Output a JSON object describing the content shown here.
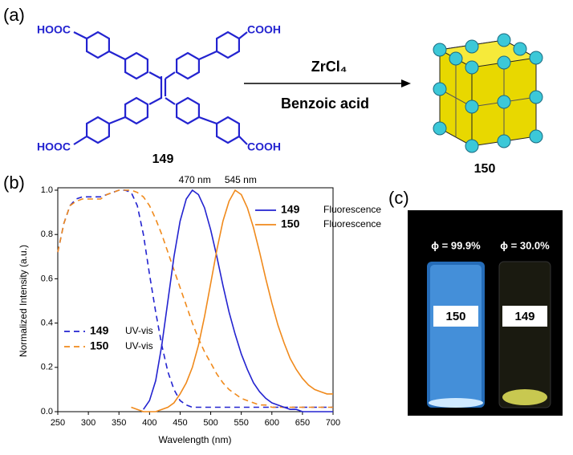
{
  "panels": {
    "a": "(a)",
    "b": "(b)",
    "c": "(c)"
  },
  "scheme": {
    "acid_left_top": "HOOC",
    "acid_right_top": "COOH",
    "acid_left_bottom": "HOOC",
    "acid_right_bottom": "COOH",
    "ligand": "149",
    "reagent": "ZrCl₄",
    "additive": "Benzoic acid",
    "product": "150"
  },
  "chart_data": {
    "type": "line",
    "x_label": "Wavelength (nm)",
    "y_label": "Normalized Intensity (a.u.)",
    "xlim": [
      250,
      700
    ],
    "ylim": [
      0,
      1.0
    ],
    "xticks": [
      250,
      300,
      350,
      400,
      450,
      500,
      550,
      600,
      650,
      700
    ],
    "yticks": [
      {
        "value": 0,
        "label": "0.0"
      },
      0.2,
      0.4,
      0.6,
      0.8,
      {
        "value": 1,
        "label": "1.0"
      }
    ],
    "x": [
      250,
      260,
      270,
      280,
      290,
      300,
      310,
      320,
      330,
      340,
      350,
      360,
      370,
      380,
      390,
      400,
      410,
      420,
      430,
      440,
      450,
      460,
      470,
      480,
      490,
      500,
      510,
      520,
      530,
      540,
      550,
      560,
      570,
      580,
      590,
      600,
      610,
      620,
      630,
      640,
      650,
      660,
      670,
      680,
      690,
      700
    ],
    "series": [
      {
        "name": "149",
        "label": "UV-vis",
        "style": "dashed",
        "color": "#2323d0",
        "values": [
          0.72,
          0.85,
          0.93,
          0.96,
          0.97,
          0.97,
          0.97,
          0.97,
          0.98,
          0.99,
          1.0,
          1.0,
          0.99,
          0.93,
          0.8,
          0.62,
          0.45,
          0.3,
          0.18,
          0.1,
          0.05,
          0.03,
          0.02,
          0.02,
          0.02,
          0.02,
          0.02,
          0.02,
          0.02,
          0.02,
          0.02,
          0.02,
          0.02,
          0.02,
          0.02,
          0.02,
          0.02,
          0.02,
          0.02,
          0.02,
          0.02,
          0.02,
          0.02,
          0.02,
          0.02,
          0.02
        ]
      },
      {
        "name": "150",
        "label": "UV-vis",
        "style": "dashed",
        "color": "#f08a1c",
        "values": [
          0.72,
          0.85,
          0.93,
          0.95,
          0.96,
          0.96,
          0.96,
          0.96,
          0.98,
          0.99,
          1.0,
          1.0,
          1.0,
          0.99,
          0.97,
          0.93,
          0.87,
          0.8,
          0.72,
          0.64,
          0.56,
          0.48,
          0.4,
          0.33,
          0.27,
          0.22,
          0.17,
          0.13,
          0.1,
          0.08,
          0.06,
          0.05,
          0.04,
          0.03,
          0.03,
          0.02,
          0.02,
          0.02,
          0.02,
          0.02,
          0.02,
          0.02,
          0.02,
          0.02,
          0.02,
          0.02
        ]
      },
      {
        "name": "149",
        "label": "Fluorescence",
        "style": "solid",
        "color": "#2323d0",
        "values": [
          null,
          null,
          null,
          null,
          null,
          null,
          null,
          null,
          null,
          null,
          null,
          null,
          null,
          null,
          0.01,
          0.05,
          0.14,
          0.3,
          0.5,
          0.7,
          0.86,
          0.96,
          1.0,
          0.98,
          0.92,
          0.82,
          0.7,
          0.57,
          0.45,
          0.35,
          0.26,
          0.19,
          0.13,
          0.09,
          0.06,
          0.04,
          0.03,
          0.02,
          0.01,
          0.01,
          0,
          0,
          0,
          0,
          0,
          0
        ]
      },
      {
        "name": "150",
        "label": "Fluorescence",
        "style": "solid",
        "color": "#f08a1c",
        "values": [
          null,
          null,
          null,
          null,
          null,
          null,
          null,
          null,
          null,
          null,
          null,
          null,
          0.02,
          0.01,
          0,
          0,
          0,
          0.01,
          0.02,
          0.04,
          0.08,
          0.13,
          0.2,
          0.3,
          0.43,
          0.58,
          0.73,
          0.86,
          0.95,
          1.0,
          0.98,
          0.92,
          0.83,
          0.72,
          0.6,
          0.49,
          0.39,
          0.31,
          0.24,
          0.19,
          0.15,
          0.12,
          0.1,
          0.09,
          0.08,
          0.08
        ]
      }
    ],
    "annotations": [
      {
        "text": "470 nm",
        "x": 470
      },
      {
        "text": "545 nm",
        "x": 545
      }
    ]
  },
  "photo": {
    "vials": [
      {
        "phi": "ϕ = 99.9%",
        "label": "150"
      },
      {
        "phi": "ϕ = 30.0%",
        "label": "149"
      }
    ]
  }
}
